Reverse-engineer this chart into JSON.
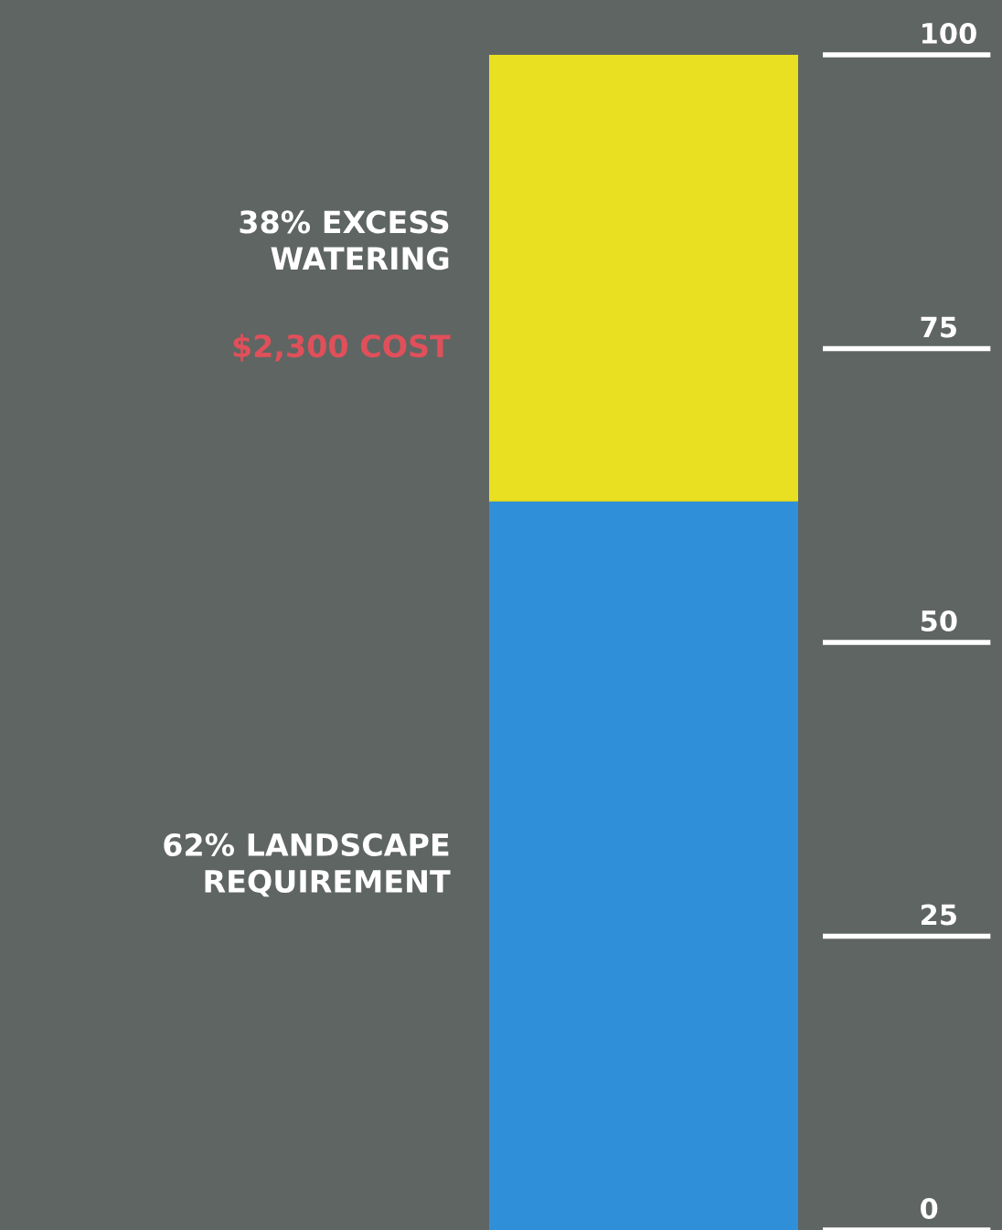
{
  "chart_data": {
    "type": "bar",
    "stacked": true,
    "categories": [
      null
    ],
    "series": [
      {
        "color": "#2f8fd8",
        "values": [
          62
        ]
      },
      {
        "color": "#e8e020",
        "values": [
          38
        ]
      }
    ],
    "annotations": [
      "62% LANDSCAPE\nREQUIREMENT",
      "38% EXCESS\nWATERING",
      "$2,300 COST"
    ],
    "ylim": [
      0,
      100
    ],
    "yticks": [
      0,
      25,
      50,
      75,
      100
    ],
    "grid": false
  }
}
